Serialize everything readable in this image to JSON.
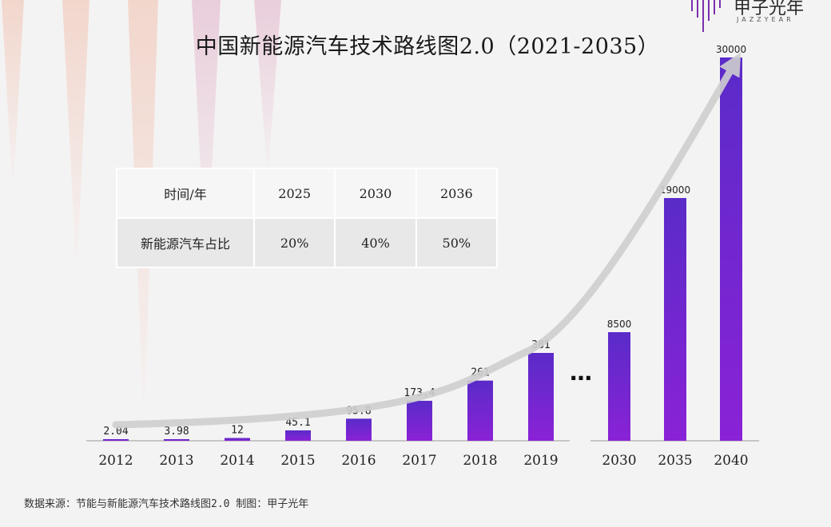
{
  "title": "中国新能源汽车技术路线图2.0（2021-2035）",
  "logo": {
    "name": "甲子光年",
    "sub": "JAZZYEAR"
  },
  "source": "数据来源：节能与新能源汽车技术路线图2.0    制图：甲子光年",
  "ellipsis": "…",
  "table": {
    "header": [
      "时间/年",
      "2025",
      "2030",
      "2036"
    ],
    "row": [
      "新能源汽车占比",
      "20%",
      "40%",
      "50%"
    ]
  },
  "colors": {
    "bar_top": "#8a22d6",
    "bar_bottom": "#5a2bc8",
    "arrow": "#cfcfcf",
    "axis": "#9a9a9a"
  },
  "chart_data": [
    {
      "type": "bar",
      "categories": [
        "2012",
        "2013",
        "2014",
        "2015",
        "2016",
        "2017",
        "2018",
        "2019"
      ],
      "values": [
        2.04,
        3.98,
        12,
        45.1,
        95.8,
        173.4,
        261,
        381
      ],
      "labels": [
        "2.04",
        "3.98",
        "12",
        "45.1",
        "95.8",
        "173.4",
        "261",
        "381"
      ],
      "ylim": [
        0,
        381
      ]
    },
    {
      "type": "bar",
      "categories": [
        "2030",
        "2035",
        "2040"
      ],
      "values": [
        8500,
        19000,
        30000
      ],
      "labels": [
        "8500",
        "19000",
        "30000"
      ],
      "ylim": [
        0,
        30000
      ]
    }
  ]
}
